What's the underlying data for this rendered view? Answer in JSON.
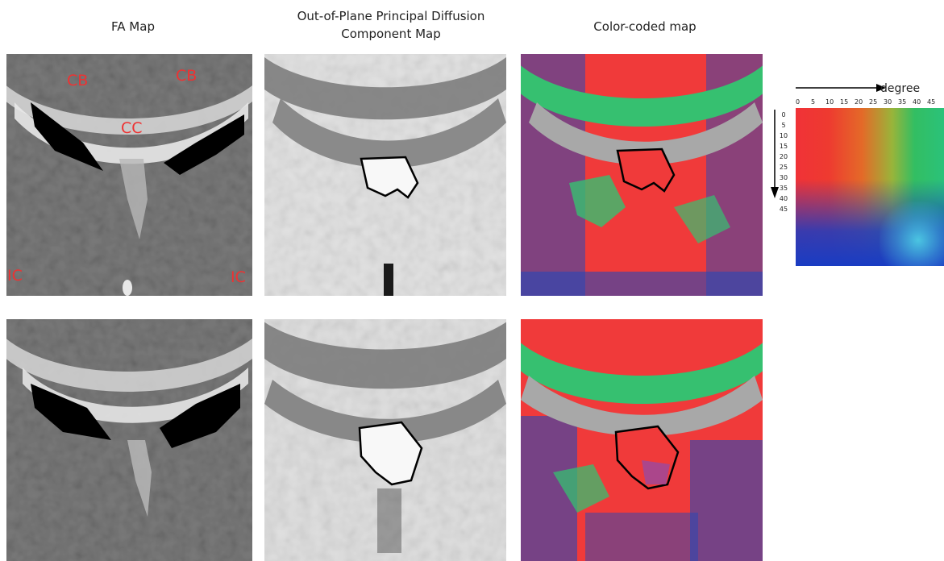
{
  "titles": {
    "fa_map": "FA Map",
    "out_of_plane_line1": "Out-of-Plane Principal Diffusion",
    "out_of_plane_line2": "Component Map",
    "color_coded": "Color-coded map"
  },
  "anatomy_labels": {
    "cb_left": "CB",
    "cb_right": "CB",
    "cc": "CC",
    "ic_left": "IC",
    "ic_right": "IC"
  },
  "legend": {
    "unit_label": "degree",
    "x_ticks": [
      "0",
      "5",
      "10",
      "15",
      "20",
      "25",
      "30",
      "35",
      "40",
      "45"
    ],
    "y_ticks": [
      "0",
      "5",
      "10",
      "15",
      "20",
      "25",
      "30",
      "35",
      "40",
      "45"
    ]
  },
  "colors": {
    "label_red": "#ee3232",
    "map_red": "#f03a3a",
    "map_green": "#36c070",
    "map_blue": "#2448b8",
    "map_gray": "#a8a8a8",
    "roi_outline": "#000000"
  }
}
